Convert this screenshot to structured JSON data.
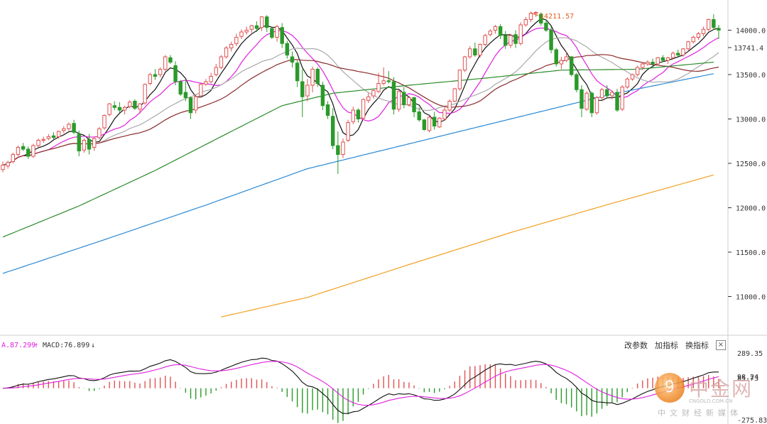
{
  "chart_data": [
    {
      "type": "candlestick",
      "y_ticks": [
        "14000.0",
        "13500.0",
        "13000.0",
        "12500.0",
        "12000.0",
        "11500.0",
        "11000.0"
      ],
      "ylim": [
        10620,
        14300
      ],
      "current_price": "13741.4",
      "max_label": "14211.57",
      "candles": [
        [
          12430,
          12520,
          12400,
          12480
        ],
        [
          12470,
          12530,
          12440,
          12510
        ],
        [
          12520,
          12620,
          12500,
          12600
        ],
        [
          12600,
          12700,
          12580,
          12680
        ],
        [
          12690,
          12730,
          12640,
          12660
        ],
        [
          12660,
          12690,
          12550,
          12580
        ],
        [
          12580,
          12720,
          12560,
          12700
        ],
        [
          12700,
          12780,
          12680,
          12760
        ],
        [
          12760,
          12800,
          12730,
          12770
        ],
        [
          12780,
          12830,
          12760,
          12800
        ],
        [
          12810,
          12850,
          12770,
          12790
        ],
        [
          12800,
          12870,
          12780,
          12860
        ],
        [
          12870,
          12920,
          12840,
          12890
        ],
        [
          12890,
          12960,
          12870,
          12940
        ],
        [
          12950,
          12990,
          12830,
          12850
        ],
        [
          12830,
          12870,
          12580,
          12640
        ],
        [
          12650,
          12780,
          12620,
          12760
        ],
        [
          12770,
          12830,
          12600,
          12660
        ],
        [
          12680,
          12800,
          12640,
          12780
        ],
        [
          12790,
          12910,
          12770,
          12890
        ],
        [
          12900,
          13050,
          12880,
          13040
        ],
        [
          13050,
          13180,
          13030,
          13170
        ],
        [
          13150,
          13200,
          13100,
          13130
        ],
        [
          13130,
          13190,
          13070,
          13100
        ],
        [
          13100,
          13150,
          13050,
          13130
        ],
        [
          13140,
          13210,
          13120,
          13190
        ],
        [
          13200,
          13220,
          13100,
          13120
        ],
        [
          13110,
          13180,
          13060,
          13170
        ],
        [
          13180,
          13400,
          13160,
          13390
        ],
        [
          13400,
          13520,
          13380,
          13500
        ],
        [
          13500,
          13560,
          13440,
          13480
        ],
        [
          13500,
          13580,
          13470,
          13560
        ],
        [
          13560,
          13720,
          13540,
          13700
        ],
        [
          13690,
          13720,
          13620,
          13640
        ],
        [
          13600,
          13650,
          13380,
          13420
        ],
        [
          13420,
          13440,
          13260,
          13280
        ],
        [
          13300,
          13450,
          13200,
          13240
        ],
        [
          13240,
          13250,
          13000,
          13070
        ],
        [
          13100,
          13280,
          13060,
          13250
        ],
        [
          13260,
          13410,
          13240,
          13390
        ],
        [
          13390,
          13450,
          13370,
          13420
        ],
        [
          13420,
          13520,
          13400,
          13480
        ],
        [
          13500,
          13620,
          13480,
          13580
        ],
        [
          13580,
          13720,
          13560,
          13700
        ],
        [
          13700,
          13820,
          13680,
          13800
        ],
        [
          13800,
          13870,
          13760,
          13840
        ],
        [
          13850,
          13960,
          13820,
          13920
        ],
        [
          13930,
          14010,
          13900,
          13980
        ],
        [
          13980,
          14040,
          13950,
          14000
        ],
        [
          14010,
          14060,
          13970,
          14050
        ],
        [
          14050,
          14100,
          13980,
          14020
        ],
        [
          14030,
          14160,
          13990,
          14150
        ],
        [
          14150,
          14170,
          13980,
          14030
        ],
        [
          14020,
          14030,
          13900,
          13920
        ],
        [
          13920,
          14060,
          13870,
          14040
        ],
        [
          14030,
          14080,
          13800,
          13850
        ],
        [
          13850,
          13880,
          13680,
          13720
        ],
        [
          13700,
          13760,
          13580,
          13640
        ],
        [
          13630,
          13660,
          13360,
          13430
        ],
        [
          13420,
          13560,
          13020,
          13250
        ],
        [
          13260,
          13450,
          13200,
          13380
        ],
        [
          13380,
          13590,
          13300,
          13560
        ],
        [
          13560,
          13580,
          13360,
          13400
        ],
        [
          13380,
          13420,
          13100,
          13150
        ],
        [
          13160,
          13200,
          13000,
          13040
        ],
        [
          13030,
          13120,
          12660,
          12700
        ],
        [
          12700,
          12860,
          12380,
          12600
        ],
        [
          12600,
          12780,
          12560,
          12740
        ],
        [
          12760,
          12990,
          12740,
          12960
        ],
        [
          12970,
          13140,
          12940,
          13100
        ],
        [
          13100,
          13120,
          12960,
          13000
        ],
        [
          13010,
          13230,
          12990,
          13220
        ],
        [
          13210,
          13290,
          13180,
          13250
        ],
        [
          13260,
          13340,
          13230,
          13320
        ],
        [
          13310,
          13520,
          13290,
          13400
        ],
        [
          13400,
          13580,
          13380,
          13430
        ],
        [
          13430,
          13540,
          13400,
          13420
        ],
        [
          13420,
          13470,
          13050,
          13110
        ],
        [
          13110,
          13330,
          13080,
          13310
        ],
        [
          13300,
          13360,
          13120,
          13160
        ],
        [
          13160,
          13260,
          13140,
          13240
        ],
        [
          13240,
          13250,
          13020,
          13080
        ],
        [
          13080,
          13130,
          12970,
          12990
        ],
        [
          12990,
          13000,
          12870,
          12880
        ],
        [
          12870,
          13040,
          12850,
          13020
        ],
        [
          13020,
          13080,
          12880,
          12920
        ],
        [
          12910,
          13020,
          12900,
          13010
        ],
        [
          13000,
          13130,
          12980,
          13100
        ],
        [
          13100,
          13220,
          13080,
          13200
        ],
        [
          13200,
          13350,
          13190,
          13340
        ],
        [
          13340,
          13560,
          13320,
          13550
        ],
        [
          13550,
          13710,
          13530,
          13700
        ],
        [
          13700,
          13820,
          13680,
          13790
        ],
        [
          13790,
          13860,
          13700,
          13720
        ],
        [
          13720,
          13850,
          13690,
          13840
        ],
        [
          13840,
          13960,
          13820,
          13940
        ],
        [
          13950,
          14010,
          13930,
          13990
        ],
        [
          14000,
          14060,
          13960,
          14040
        ],
        [
          14040,
          14070,
          13900,
          13940
        ],
        [
          13940,
          13990,
          13790,
          13830
        ],
        [
          13830,
          13960,
          13800,
          13940
        ],
        [
          13950,
          14000,
          13800,
          13850
        ],
        [
          13850,
          14090,
          13830,
          14060
        ],
        [
          14060,
          14150,
          14040,
          14120
        ],
        [
          14120,
          14210,
          14090,
          14190
        ],
        [
          14190,
          14212,
          14150,
          14200
        ],
        [
          14180,
          14200,
          14050,
          14080
        ],
        [
          14080,
          14120,
          13980,
          14000
        ],
        [
          14000,
          14040,
          13740,
          13780
        ],
        [
          13780,
          13800,
          13590,
          13620
        ],
        [
          13620,
          13700,
          13560,
          13660
        ],
        [
          13660,
          13760,
          13640,
          13700
        ],
        [
          13700,
          13710,
          13480,
          13500
        ],
        [
          13500,
          13520,
          13300,
          13330
        ],
        [
          13330,
          13380,
          13020,
          13120
        ],
        [
          13110,
          13310,
          13090,
          13290
        ],
        [
          13290,
          13310,
          13020,
          13070
        ],
        [
          13070,
          13260,
          13050,
          13240
        ],
        [
          13240,
          13350,
          13220,
          13330
        ],
        [
          13330,
          13380,
          13240,
          13260
        ],
        [
          13260,
          13320,
          13220,
          13300
        ],
        [
          13300,
          13340,
          13080,
          13100
        ],
        [
          13110,
          13380,
          13090,
          13360
        ],
        [
          13360,
          13470,
          13340,
          13450
        ],
        [
          13450,
          13510,
          13430,
          13500
        ],
        [
          13500,
          13600,
          13480,
          13580
        ],
        [
          13580,
          13640,
          13550,
          13620
        ],
        [
          13620,
          13660,
          13600,
          13640
        ],
        [
          13640,
          13680,
          13600,
          13620
        ],
        [
          13620,
          13700,
          13610,
          13690
        ],
        [
          13690,
          13720,
          13640,
          13660
        ],
        [
          13660,
          13700,
          13620,
          13690
        ],
        [
          13690,
          13760,
          13670,
          13740
        ],
        [
          13740,
          13780,
          13700,
          13720
        ],
        [
          13720,
          13800,
          13700,
          13790
        ],
        [
          13790,
          13880,
          13770,
          13870
        ],
        [
          13870,
          13940,
          13850,
          13920
        ],
        [
          13920,
          13980,
          13890,
          13960
        ],
        [
          13960,
          14040,
          13930,
          14010
        ],
        [
          14010,
          14130,
          13990,
          14120
        ],
        [
          14120,
          14180,
          14000,
          14030
        ],
        [
          14020,
          14060,
          13900,
          14000
        ]
      ],
      "moving_averages": [
        {
          "color": "#111111",
          "period": 5
        },
        {
          "color": "#e020e0",
          "period": 10
        },
        {
          "color": "#aaaaaa",
          "period": 20
        },
        {
          "color": "#8b2a2a",
          "period": 30
        },
        {
          "color": "#2a8a2a",
          "period": 60
        },
        {
          "color": "#2b8ad6",
          "period": 120
        },
        {
          "color": "#f0a020",
          "period": 250
        }
      ],
      "ma120_line": [
        [
          0,
          11260
        ],
        [
          20,
          11640
        ],
        [
          40,
          12030
        ],
        [
          60,
          12440
        ],
        [
          80,
          12720
        ],
        [
          100,
          13000
        ],
        [
          120,
          13280
        ],
        [
          140,
          13510
        ]
      ],
      "ma250_line": [
        [
          43,
          10770
        ],
        [
          60,
          10990
        ],
        [
          80,
          11360
        ],
        [
          100,
          11720
        ],
        [
          120,
          12050
        ],
        [
          140,
          12370
        ]
      ],
      "ma60_line": [
        [
          0,
          11670
        ],
        [
          15,
          12020
        ],
        [
          30,
          12420
        ],
        [
          45,
          12860
        ],
        [
          55,
          13150
        ],
        [
          65,
          13290
        ],
        [
          80,
          13380
        ],
        [
          95,
          13460
        ],
        [
          110,
          13550
        ],
        [
          125,
          13560
        ],
        [
          140,
          13640
        ]
      ]
    },
    {
      "type": "macd",
      "title_prefix": "A.87.299",
      "title_macd": "MACD:76.899",
      "up_arrow": "↑",
      "down_arrow": "↓",
      "y_ticks": [
        "289.35",
        "98.24",
        "85.73",
        "-275.83"
      ],
      "ylim": [
        -275.83,
        289.35
      ]
    }
  ],
  "toolbar": {
    "change_params": "改参数",
    "add_indicator": "加指标",
    "switch_indicator": "换指标",
    "close": "×"
  },
  "watermark": {
    "name": "中金网",
    "domain": "CNGOLD.COM.CN",
    "tagline": "中文财经新媒体",
    "icon": "9"
  }
}
